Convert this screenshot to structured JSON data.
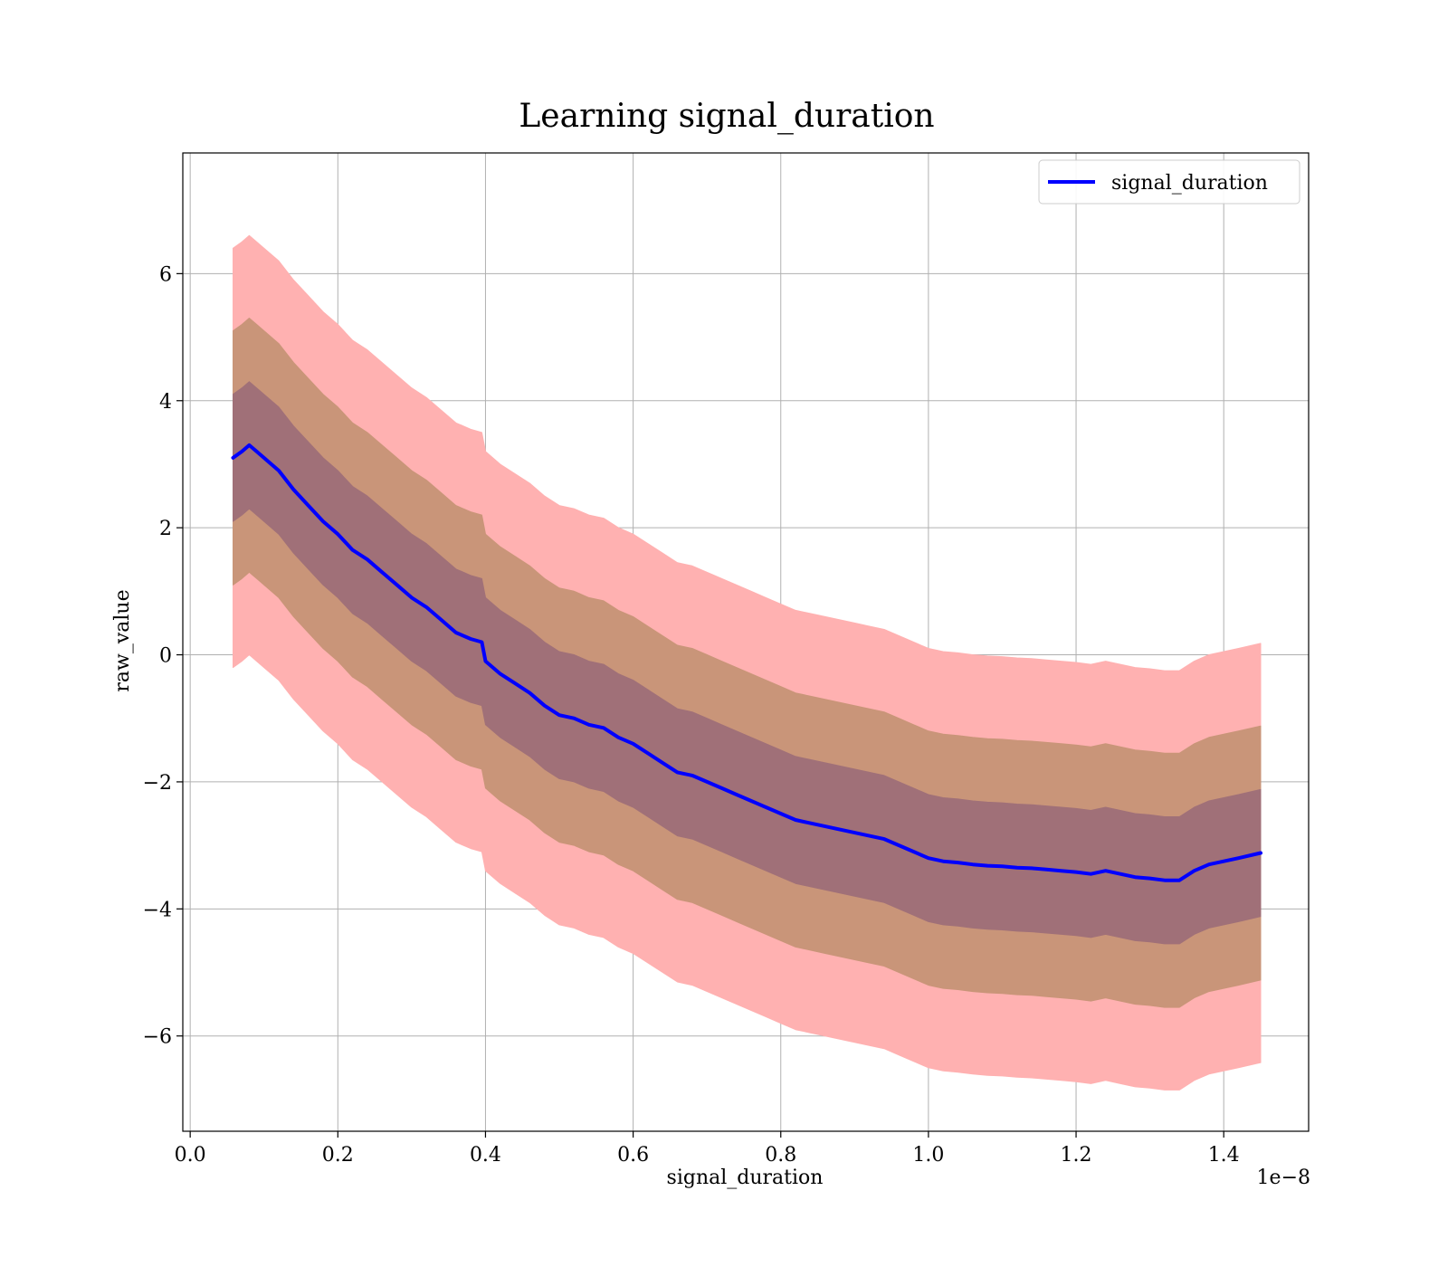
{
  "chart_data": {
    "type": "line",
    "title": "Learning signal_duration",
    "xlabel": "signal_duration",
    "ylabel": "raw_value",
    "x_offset_label": "1e−8",
    "xlim": [
      -0.01,
      1.515
    ],
    "ylim": [
      -7.5,
      7.9
    ],
    "x_ticks": [
      0.0,
      0.2,
      0.4,
      0.6,
      0.8,
      1.0,
      1.2,
      1.4
    ],
    "x_tick_labels": [
      "0.0",
      "0.2",
      "0.4",
      "0.6",
      "0.8",
      "1.0",
      "1.2",
      "1.4"
    ],
    "y_ticks": [
      -6,
      -4,
      -2,
      0,
      2,
      4,
      6
    ],
    "y_tick_labels": [
      "−6",
      "−4",
      "−2",
      "0",
      "2",
      "4",
      "6"
    ],
    "grid": true,
    "legend_position": "top-right",
    "series": [
      {
        "name": "signal_duration",
        "color": "#0000ff",
        "x": [
          0.058,
          0.07,
          0.08,
          0.09,
          0.1,
          0.12,
          0.14,
          0.16,
          0.18,
          0.2,
          0.22,
          0.24,
          0.26,
          0.28,
          0.3,
          0.32,
          0.34,
          0.36,
          0.38,
          0.395,
          0.4,
          0.42,
          0.44,
          0.46,
          0.48,
          0.5,
          0.52,
          0.54,
          0.56,
          0.58,
          0.6,
          0.62,
          0.64,
          0.66,
          0.68,
          0.7,
          0.72,
          0.74,
          0.76,
          0.78,
          0.8,
          0.82,
          0.84,
          0.86,
          0.88,
          0.9,
          0.92,
          0.94,
          0.96,
          0.98,
          1.0,
          1.02,
          1.04,
          1.06,
          1.08,
          1.1,
          1.12,
          1.14,
          1.16,
          1.18,
          1.2,
          1.22,
          1.24,
          1.26,
          1.28,
          1.3,
          1.32,
          1.34,
          1.36,
          1.38,
          1.4,
          1.42,
          1.45
        ],
        "y": [
          3.1,
          3.2,
          3.3,
          3.2,
          3.1,
          2.9,
          2.6,
          2.35,
          2.1,
          1.9,
          1.65,
          1.5,
          1.3,
          1.1,
          0.9,
          0.75,
          0.55,
          0.35,
          0.25,
          0.2,
          -0.1,
          -0.3,
          -0.45,
          -0.6,
          -0.8,
          -0.95,
          -1.0,
          -1.1,
          -1.15,
          -1.3,
          -1.4,
          -1.55,
          -1.7,
          -1.85,
          -1.9,
          -2.0,
          -2.1,
          -2.2,
          -2.3,
          -2.4,
          -2.5,
          -2.6,
          -2.65,
          -2.7,
          -2.75,
          -2.8,
          -2.85,
          -2.9,
          -3.0,
          -3.1,
          -3.2,
          -3.25,
          -3.27,
          -3.3,
          -3.32,
          -3.33,
          -3.35,
          -3.36,
          -3.38,
          -3.4,
          -3.42,
          -3.45,
          -3.4,
          -3.45,
          -3.5,
          -3.52,
          -3.55,
          -3.55,
          -3.4,
          -3.3,
          -3.25,
          -3.2,
          -3.12
        ]
      }
    ],
    "band_half_widths": [
      1.0,
      2.0,
      3.3
    ],
    "band_colors": [
      "#a07078",
      "#c99579",
      "#ffb1b1"
    ]
  }
}
